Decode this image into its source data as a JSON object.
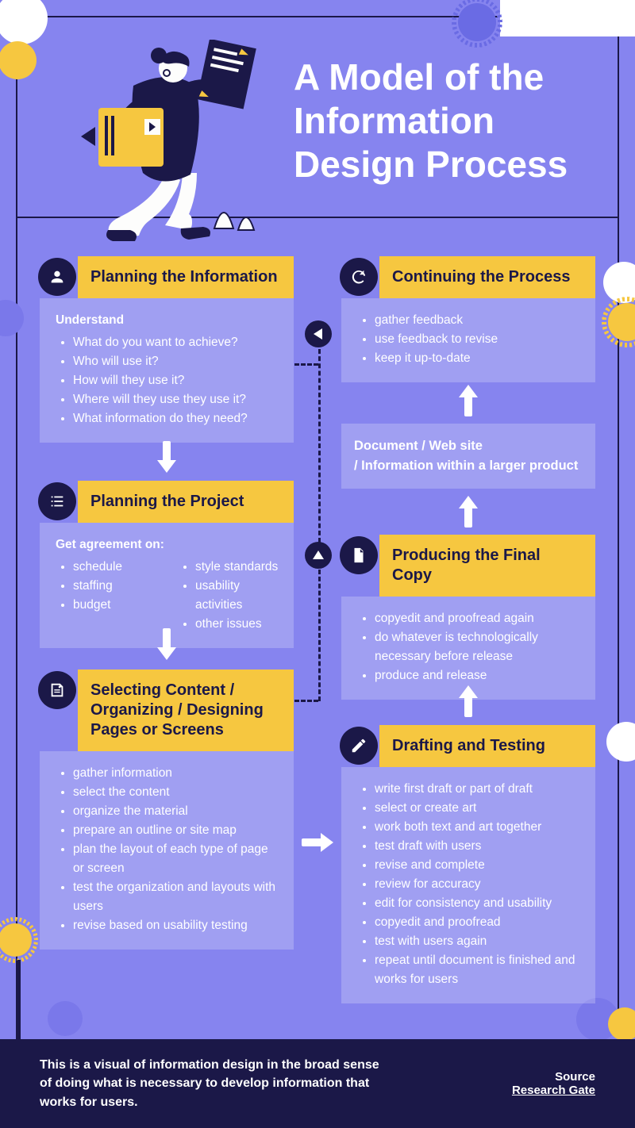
{
  "colors": {
    "background": "#8684ef",
    "navy": "#1b1848",
    "yellow": "#f6c740",
    "white": "#ffffff",
    "panel": "rgba(255,255,255,0.22)",
    "blueburst": "#6a6be4",
    "purpleCircle": "#7a78ea",
    "yellowCircle": "#f6c740"
  },
  "title": "A Model of the Information Design Process",
  "sections": {
    "planning_info": {
      "title": "Planning the Information",
      "lead": "Understand",
      "items": [
        "What do you want to achieve?",
        "Who will use it?",
        "How will they use it?",
        "Where will they use they use it?",
        "What information do they need?"
      ]
    },
    "planning_project": {
      "title": "Planning the Project",
      "lead": "Get agreement on:",
      "left": [
        "schedule",
        "staffing",
        "budget"
      ],
      "right": [
        "style standards",
        "usability activities",
        "other issues"
      ]
    },
    "selecting": {
      "title": "Selecting Content / Organizing / Designing Pages or Screens",
      "items": [
        "gather information",
        "select the content",
        "organize the material",
        "prepare an outline or site map",
        "plan the layout of each type of page or screen",
        "test the organization and layouts with users",
        "revise based on usability testing"
      ]
    },
    "continuing": {
      "title": "Continuing the Process",
      "items": [
        "gather feedback",
        "use feedback to revise",
        "keep it up-to-date"
      ]
    },
    "midbox": "Document  /  Web site\n/   Information within a larger product",
    "producing": {
      "title": "Producing the Final Copy",
      "items": [
        "copyedit and proofread again",
        "do whatever is technologically necessary before release",
        "produce and release"
      ]
    },
    "drafting": {
      "title": "Drafting and Testing",
      "items": [
        "write first draft or part of draft",
        "select or create art",
        "work both text and art together",
        "test draft with users",
        "revise and complete",
        "review for accuracy",
        "edit for consistency and usability",
        "copyedit and proofread",
        "test with users again",
        "repeat until document is finished and works for users"
      ]
    }
  },
  "footer": {
    "desc": "This is a visual of information design in the broad sense of doing what is necessary to develop information that works for users.",
    "source_label": "Source",
    "source_name": "Research Gate"
  }
}
